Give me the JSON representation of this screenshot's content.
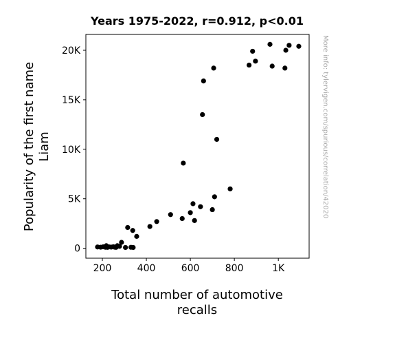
{
  "chart_data": {
    "type": "scatter",
    "title": "Years 1975-2022, r=0.912, p<0.01",
    "xlabel_lines": [
      "Total number of automotive",
      "recalls"
    ],
    "ylabel_lines": [
      "Popularity of the first name",
      "Liam"
    ],
    "watermark": "More info: tylervigen.com/spurious/correlation/42020",
    "xlim": [
      125,
      1140
    ],
    "ylim": [
      -1000,
      21600
    ],
    "x_ticks": [
      {
        "value": 200,
        "label": "200"
      },
      {
        "value": 400,
        "label": "400"
      },
      {
        "value": 600,
        "label": "600"
      },
      {
        "value": 800,
        "label": "800"
      },
      {
        "value": 1000,
        "label": "1K"
      }
    ],
    "y_ticks": [
      {
        "value": 0,
        "label": "0"
      },
      {
        "value": 5000,
        "label": "5K"
      },
      {
        "value": 10000,
        "label": "10K"
      },
      {
        "value": 15000,
        "label": "15K"
      },
      {
        "value": 20000,
        "label": "20K"
      }
    ],
    "grid": false,
    "point_color": "#000000",
    "points": [
      {
        "x": 178,
        "y": 130
      },
      {
        "x": 192,
        "y": 110
      },
      {
        "x": 204,
        "y": 150
      },
      {
        "x": 214,
        "y": 100
      },
      {
        "x": 218,
        "y": 260
      },
      {
        "x": 223,
        "y": 90
      },
      {
        "x": 230,
        "y": 140
      },
      {
        "x": 240,
        "y": 120
      },
      {
        "x": 250,
        "y": 160
      },
      {
        "x": 256,
        "y": 110
      },
      {
        "x": 262,
        "y": 90
      },
      {
        "x": 268,
        "y": 260
      },
      {
        "x": 278,
        "y": 200
      },
      {
        "x": 287,
        "y": 600
      },
      {
        "x": 305,
        "y": 80
      },
      {
        "x": 315,
        "y": 2100
      },
      {
        "x": 330,
        "y": 100
      },
      {
        "x": 338,
        "y": 1800
      },
      {
        "x": 340,
        "y": 80
      },
      {
        "x": 356,
        "y": 1200
      },
      {
        "x": 416,
        "y": 2200
      },
      {
        "x": 447,
        "y": 2700
      },
      {
        "x": 510,
        "y": 3400
      },
      {
        "x": 563,
        "y": 3000
      },
      {
        "x": 568,
        "y": 8600
      },
      {
        "x": 600,
        "y": 3600
      },
      {
        "x": 612,
        "y": 4500
      },
      {
        "x": 619,
        "y": 2800
      },
      {
        "x": 646,
        "y": 4200
      },
      {
        "x": 655,
        "y": 13500
      },
      {
        "x": 660,
        "y": 16900
      },
      {
        "x": 700,
        "y": 3900
      },
      {
        "x": 706,
        "y": 18200
      },
      {
        "x": 710,
        "y": 5200
      },
      {
        "x": 720,
        "y": 11000
      },
      {
        "x": 781,
        "y": 6000
      },
      {
        "x": 867,
        "y": 18500
      },
      {
        "x": 883,
        "y": 19900
      },
      {
        "x": 896,
        "y": 18900
      },
      {
        "x": 962,
        "y": 20600
      },
      {
        "x": 972,
        "y": 18400
      },
      {
        "x": 1030,
        "y": 18200
      },
      {
        "x": 1034,
        "y": 20000
      },
      {
        "x": 1049,
        "y": 20500
      },
      {
        "x": 1093,
        "y": 20400
      }
    ]
  }
}
